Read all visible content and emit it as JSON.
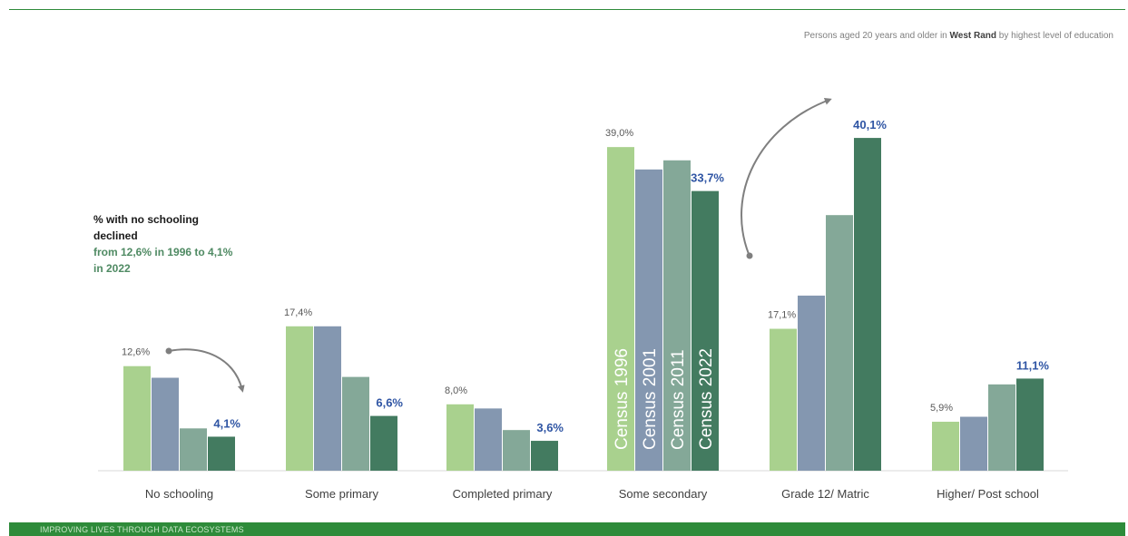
{
  "subtitle": {
    "prefix": "Persons aged 20 years and older in ",
    "place": "West  Rand",
    "suffix": " by highest level of education"
  },
  "note": {
    "line_dark": "% with no schooling declined",
    "line_green": "from 12,6% in 1996 to 4,1% in 2022"
  },
  "footer": {
    "text": "IMPROVING LIVES THROUGH DATA ECOSYSTEMS"
  },
  "colors": {
    "census_1996": "#a9d18e",
    "census_2001": "#8497b0",
    "census_2011": "#84a898",
    "census_2022": "#437b60",
    "accent_green": "#2e8b3a",
    "highlight_blue": "#2f55a4"
  },
  "chart_data": {
    "type": "bar",
    "title": "Persons aged 20 years and older in West Rand by highest level of education",
    "categories": [
      "No schooling",
      "Some primary",
      "Completed primary",
      "Some secondary",
      "Grade 12/ Matric",
      "Higher/ Post school"
    ],
    "series": [
      {
        "name": "Census 1996",
        "values": [
          12.6,
          17.4,
          8.0,
          39.0,
          17.1,
          5.9
        ]
      },
      {
        "name": "Census 2001",
        "values": [
          11.2,
          17.4,
          7.5,
          36.3,
          21.1,
          6.5
        ]
      },
      {
        "name": "Census 2011",
        "values": [
          5.1,
          11.3,
          4.9,
          37.4,
          30.8,
          10.4
        ]
      },
      {
        "name": "Census 2022",
        "values": [
          4.1,
          6.6,
          3.6,
          33.7,
          40.1,
          11.1
        ]
      }
    ],
    "data_labels": [
      [
        "12,6%",
        "17,4%",
        "8,0%",
        "39,0%",
        "17,1%",
        "5,9%"
      ],
      [
        "",
        "",
        "",
        "",
        "",
        ""
      ],
      [
        "",
        "",
        "",
        "",
        "",
        ""
      ],
      [
        "4,1%",
        "6,6%",
        "3,6%",
        "33,7%",
        "40,1%",
        "11,1%"
      ]
    ],
    "ylim": [
      0,
      42
    ],
    "grid": false,
    "legend": "inside-bars"
  }
}
